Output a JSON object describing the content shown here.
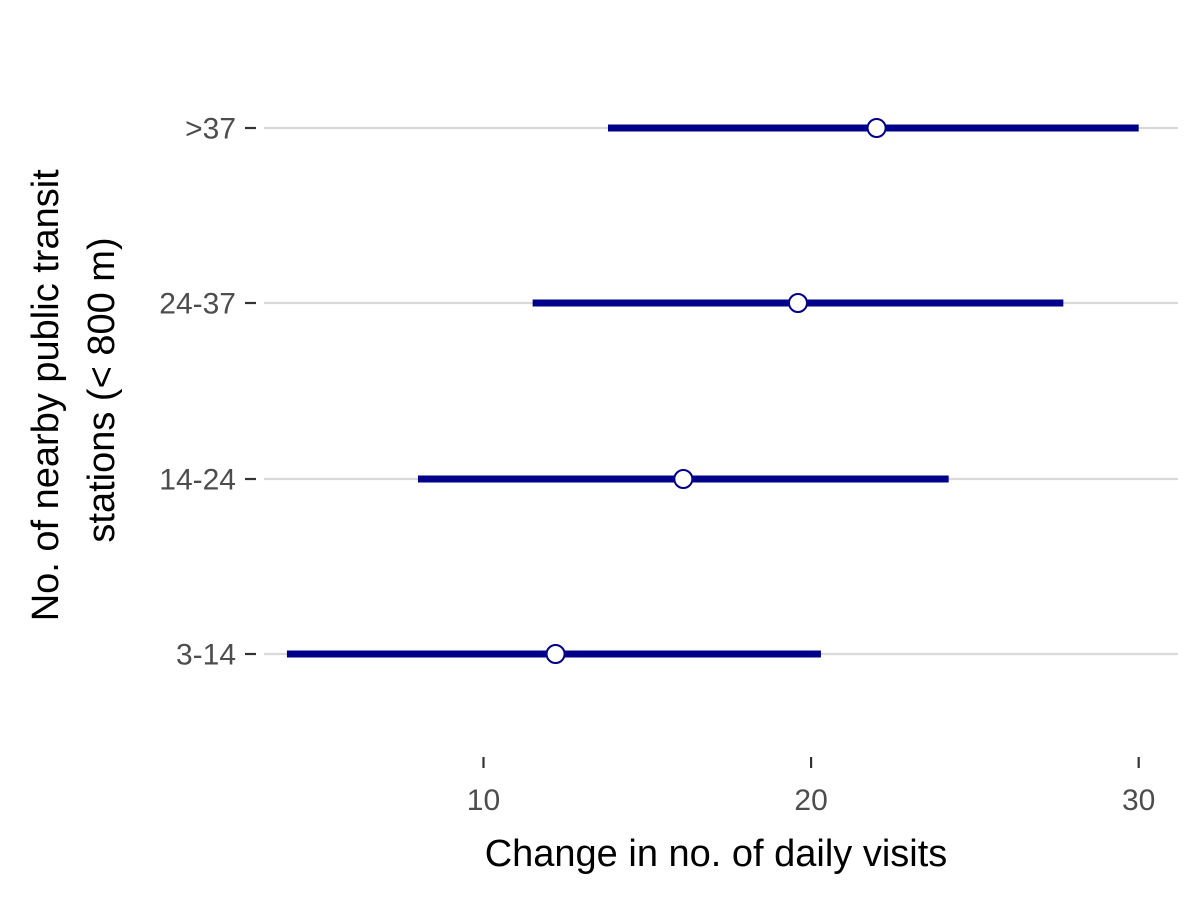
{
  "chart_data": {
    "type": "dot-interval",
    "title": "",
    "xlabel": "Change in no. of daily visits",
    "ylabel_lines": [
      "No. of nearby public transit",
      "stations (< 800 m)"
    ],
    "xlim": [
      3.3,
      31.2
    ],
    "x_ticks": [
      10,
      20,
      30
    ],
    "categories": [
      "3-14",
      "14-24",
      "24-37",
      ">37"
    ],
    "estimates": [
      12.2,
      16.1,
      19.6,
      22.0
    ],
    "lower": [
      4.0,
      8.0,
      11.5,
      13.8
    ],
    "upper": [
      20.3,
      24.2,
      27.7,
      30.0
    ],
    "grid": "horizontal",
    "colors": {
      "interval": "#00008b",
      "point_fill": "#ffffff",
      "point_stroke": "#00008b",
      "grid": "#d9d9d9",
      "tick": "#333333"
    }
  }
}
